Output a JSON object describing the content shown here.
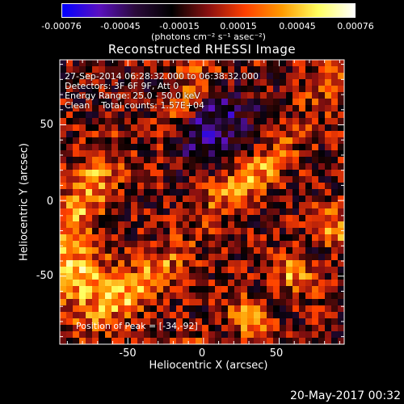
{
  "chart_data": {
    "type": "heatmap",
    "title": "Reconstructed RHESSI Image",
    "xlabel": "Heliocentric X (arcsec)",
    "ylabel": "Heliocentric Y (arcsec)",
    "xlim": [
      -95,
      93
    ],
    "ylim": [
      -95,
      93
    ],
    "xticks": [
      "-50",
      "0",
      "50"
    ],
    "yticks": [
      "50",
      "0",
      "-50"
    ],
    "colorbar": {
      "min": -0.00076,
      "max": 0.00076,
      "ticks": [
        "-0.00076",
        "-0.00045",
        "-0.00015",
        "0.00015",
        "0.00045",
        "0.00076"
      ],
      "unit_label": "(photons cm⁻² s⁻¹ asec⁻²)",
      "colormap": [
        "#0000ff",
        "#5a10c0",
        "#2a0a3a",
        "#000000",
        "#8a1010",
        "#ff4000",
        "#ff9a00",
        "#ffff60",
        "#ffffff"
      ]
    },
    "annotations": [
      "27-Sep-2014 06:28:32.000 to 06:38:32.000",
      "Detectors: 3F 6F 9F, Att 0",
      "Energy Range: 25.0 - 50.0 keV",
      "Clean    Total counts: 1.57E+04"
    ],
    "peak_label": "Position of Peak = [-34,-92]"
  },
  "footer": {
    "date": "20-May-2017 00:32"
  }
}
